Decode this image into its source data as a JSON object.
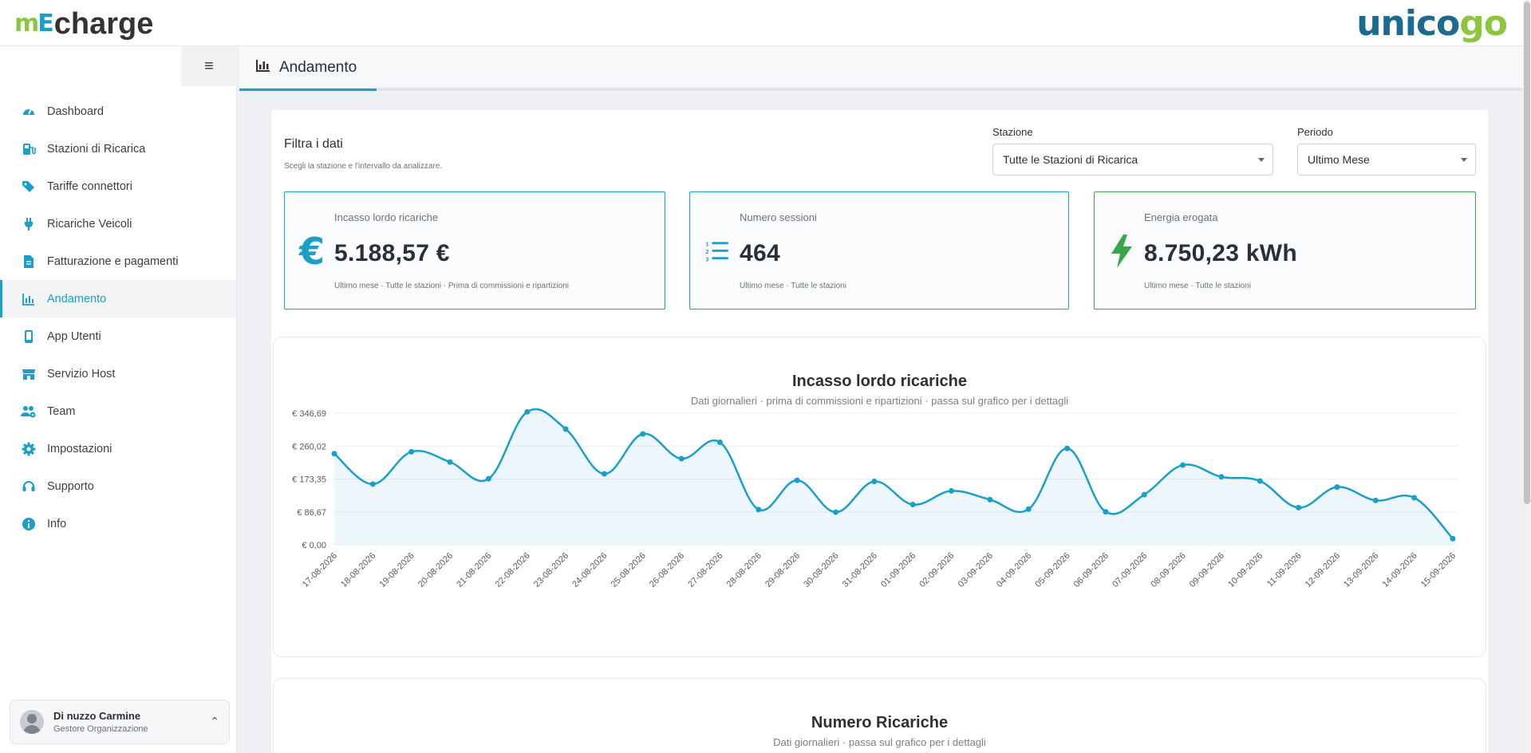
{
  "brand": {
    "left_logo_m": "m",
    "left_logo_e": "E",
    "left_logo_text": "charge",
    "right_logo_a": "unico",
    "right_logo_b": "go"
  },
  "sidebar": {
    "items": [
      {
        "label": "Dashboard",
        "icon": "speedometer-icon"
      },
      {
        "label": "Stazioni di Ricarica",
        "icon": "charging-station-icon"
      },
      {
        "label": "Tariffe connettori",
        "icon": "tags-icon"
      },
      {
        "label": "Ricariche Veicoli",
        "icon": "plug-icon"
      },
      {
        "label": "Fatturazione e pagamenti",
        "icon": "invoice-icon"
      },
      {
        "label": "Andamento",
        "icon": "bar-chart-icon",
        "active": true
      },
      {
        "label": "App Utenti",
        "icon": "mobile-icon"
      },
      {
        "label": "Servizio Host",
        "icon": "store-icon"
      },
      {
        "label": "Team",
        "icon": "users-gear-icon"
      },
      {
        "label": "Impostazioni",
        "icon": "gear-icon"
      },
      {
        "label": "Supporto",
        "icon": "headset-icon"
      },
      {
        "label": "Info",
        "icon": "info-icon"
      }
    ],
    "user": {
      "name": "Di nuzzo Carmine",
      "role": "Gestore Organizzazione"
    }
  },
  "tab": {
    "label": "Andamento"
  },
  "filter": {
    "title": "Filtra i dati",
    "subtitle": "Scegli la stazione e l'intervallo da analizzare.",
    "station_label": "Stazione",
    "station_value": "Tutte le Stazioni di Ricarica",
    "period_label": "Periodo",
    "period_value": "Ultimo Mese"
  },
  "kpis": [
    {
      "label": "Incasso lordo ricariche",
      "value": "5.188,57 €",
      "note": "Ultimo mese · Tutte le stazioni · Prima di commissioni e ripartizioni",
      "color": "#1a9fc9"
    },
    {
      "label": "Numero sessioni",
      "value": "464",
      "note": "Ultimo mese · Tutte le stazioni",
      "color": "#1a9fc9"
    },
    {
      "label": "Energia erogata",
      "value": "8.750,23 kWh",
      "note": "Ultimo mese · Tutte le stazioni",
      "color": "#3aa64a"
    }
  ],
  "chart_data": {
    "type": "area",
    "title": "Incasso lordo ricariche",
    "subtitle": "Dati giornalieri · prima di commissioni e ripartizioni · passa sul grafico per i dettagli",
    "x": [
      "17-08-2026",
      "18-08-2026",
      "19-08-2026",
      "20-08-2026",
      "21-08-2026",
      "22-08-2026",
      "23-08-2026",
      "24-08-2026",
      "25-08-2026",
      "26-08-2026",
      "27-08-2026",
      "28-08-2026",
      "29-08-2026",
      "30-08-2026",
      "31-08-2026",
      "01-09-2026",
      "02-09-2026",
      "03-09-2026",
      "04-09-2026",
      "05-09-2026",
      "06-09-2026",
      "07-09-2026",
      "08-09-2026",
      "09-09-2026",
      "10-09-2026",
      "11-09-2026",
      "12-09-2026",
      "13-09-2026",
      "14-09-2026",
      "15-09-2026"
    ],
    "y": [
      240,
      160,
      245,
      218,
      174,
      350,
      305,
      187,
      292,
      227,
      270,
      93,
      170,
      86,
      167,
      106,
      142,
      119,
      94,
      254,
      87,
      132,
      210,
      179,
      168,
      98,
      152,
      117,
      124,
      16
    ],
    "y_ticks": [
      "€ 0,00",
      "€ 86,67",
      "€ 173,35",
      "€ 260,02",
      "€ 346,69"
    ],
    "ylim": [
      0,
      346.69
    ],
    "grid": true,
    "color": "#1a9fc9"
  },
  "chart2": {
    "title": "Numero Ricariche",
    "subtitle": "Dati giornalieri · passa sul grafico per i dettagli"
  }
}
